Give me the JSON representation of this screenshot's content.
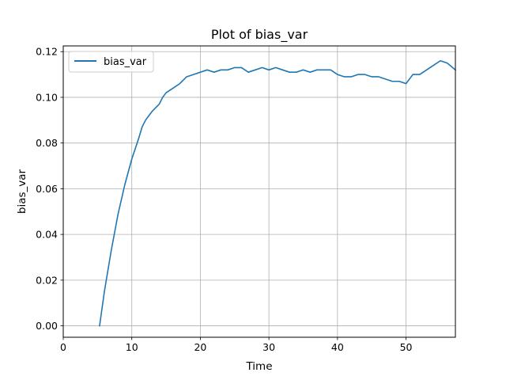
{
  "chart_data": {
    "type": "line",
    "title": "Plot of bias_var",
    "xlabel": "Time",
    "ylabel": "bias_var",
    "xlim": [
      0,
      57.2
    ],
    "ylim": [
      -0.005,
      0.1225
    ],
    "xticks": [
      0,
      10,
      20,
      30,
      40,
      50
    ],
    "xtick_labels": [
      "0",
      "10",
      "20",
      "30",
      "40",
      "50"
    ],
    "yticks": [
      0.0,
      0.02,
      0.04,
      0.06,
      0.08,
      0.1,
      0.12
    ],
    "ytick_labels": [
      "0.00",
      "0.02",
      "0.04",
      "0.06",
      "0.08",
      "0.10",
      "0.12"
    ],
    "grid": true,
    "legend_placement": "top-left",
    "series": [
      {
        "name": "bias_var",
        "color": "#1f77b4",
        "x": [
          5.3,
          6.0,
          7.0,
          8.0,
          9.0,
          10.0,
          11.0,
          11.5,
          12.0,
          12.5,
          13.0,
          14.0,
          14.5,
          15.0,
          16.0,
          17.0,
          18.0,
          19.0,
          20.0,
          21.0,
          22.0,
          23.0,
          24.0,
          25.0,
          26.0,
          27.0,
          28.0,
          29.0,
          30.0,
          31.0,
          32.0,
          33.0,
          34.0,
          35.0,
          36.0,
          37.0,
          38.0,
          39.0,
          40.0,
          41.0,
          42.0,
          43.0,
          44.0,
          45.0,
          46.0,
          47.0,
          48.0,
          49.0,
          50.0,
          51.0,
          52.0,
          53.0,
          54.0,
          55.0,
          56.0,
          57.2
        ],
        "y": [
          0.0,
          0.015,
          0.033,
          0.049,
          0.062,
          0.073,
          0.082,
          0.087,
          0.09,
          0.092,
          0.094,
          0.097,
          0.1,
          0.102,
          0.104,
          0.106,
          0.109,
          0.11,
          0.111,
          0.112,
          0.111,
          0.112,
          0.112,
          0.113,
          0.113,
          0.111,
          0.112,
          0.113,
          0.112,
          0.113,
          0.112,
          0.111,
          0.111,
          0.112,
          0.111,
          0.112,
          0.112,
          0.112,
          0.11,
          0.109,
          0.109,
          0.11,
          0.11,
          0.109,
          0.109,
          0.108,
          0.107,
          0.107,
          0.106,
          0.11,
          0.11,
          0.112,
          0.114,
          0.116,
          0.115,
          0.112
        ]
      }
    ]
  }
}
